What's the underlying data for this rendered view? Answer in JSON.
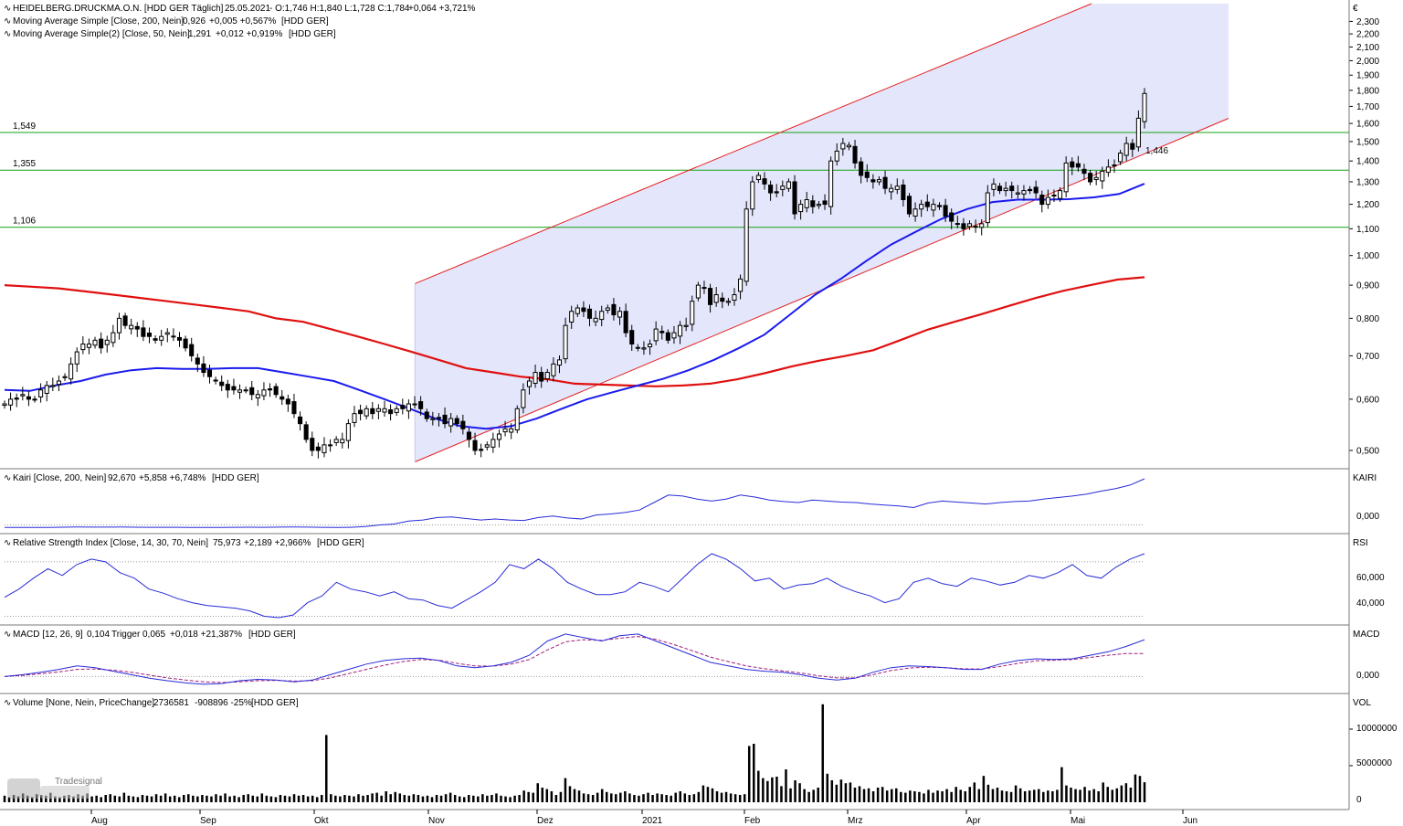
{
  "chart_data": [
    {
      "type": "candlestick",
      "header": {
        "title": "HEIDELBERG.DRUCKMA.O.N. [HDD GER Täglich]",
        "date": "25.05.2021",
        "ohlc": "- O:1,746 H:1,840 L:1,728 C:1,784",
        "change": "+0,064 +3,721%"
      },
      "indicators": [
        {
          "label": "Moving Average Simple [Close, 200, Nein]",
          "value": "0,926",
          "change": "+0,005 +0,567%",
          "suffix": "[HDD GER]",
          "color": "#e01010"
        },
        {
          "label": "Moving Average Simple(2) [Close, 50, Nein]",
          "value": "1,291",
          "change": "+0,012 +0,919%",
          "suffix": "[HDD GER]",
          "color": "#1a1aee"
        }
      ],
      "currency": "€",
      "y_scale": "log",
      "ylim": [
        0.47,
        2.45
      ],
      "y_ticks": [
        0.5,
        0.6,
        0.7,
        0.8,
        0.9,
        1.0,
        1.1,
        1.2,
        1.3,
        1.4,
        1.5,
        1.6,
        1.7,
        1.8,
        1.9,
        2.0,
        2.1,
        2.2,
        2.3
      ],
      "y_tick_labels": [
        "0,500",
        "0,600",
        "0,700",
        "0,800",
        "0,900",
        "1,000",
        "1,100",
        "1,200",
        "1,300",
        "1,400",
        "1,500",
        "1,600",
        "1,700",
        "1,800",
        "1,900",
        "2,000",
        "2,100",
        "2,200",
        "2,300"
      ],
      "x_labels": [
        "Aug",
        "Sep",
        "Okt",
        "Nov",
        "Dez",
        "2021",
        "Feb",
        "Mrz",
        "Apr",
        "Mai",
        "Jun"
      ],
      "horizontal_levels": [
        {
          "label": "1,549",
          "value": 1.549
        },
        {
          "label": "1,355",
          "value": 1.355
        },
        {
          "label": "1,106",
          "value": 1.106
        }
      ],
      "channel_label": "1,446",
      "closes": [
        0.59,
        0.6,
        0.6,
        0.61,
        0.6,
        0.6,
        0.62,
        0.63,
        0.63,
        0.64,
        0.65,
        0.68,
        0.71,
        0.73,
        0.73,
        0.74,
        0.72,
        0.74,
        0.76,
        0.8,
        0.78,
        0.78,
        0.77,
        0.75,
        0.75,
        0.74,
        0.75,
        0.76,
        0.75,
        0.74,
        0.72,
        0.7,
        0.68,
        0.66,
        0.65,
        0.64,
        0.63,
        0.62,
        0.62,
        0.62,
        0.62,
        0.61,
        0.61,
        0.62,
        0.62,
        0.61,
        0.6,
        0.59,
        0.57,
        0.55,
        0.52,
        0.5,
        0.5,
        0.51,
        0.51,
        0.52,
        0.52,
        0.55,
        0.57,
        0.57,
        0.58,
        0.57,
        0.58,
        0.58,
        0.57,
        0.58,
        0.58,
        0.59,
        0.59,
        0.58,
        0.56,
        0.56,
        0.56,
        0.55,
        0.56,
        0.55,
        0.54,
        0.52,
        0.5,
        0.5,
        0.51,
        0.52,
        0.53,
        0.54,
        0.54,
        0.58,
        0.62,
        0.64,
        0.66,
        0.64,
        0.66,
        0.68,
        0.69,
        0.78,
        0.82,
        0.83,
        0.82,
        0.8,
        0.8,
        0.82,
        0.83,
        0.81,
        0.82,
        0.76,
        0.73,
        0.72,
        0.72,
        0.73,
        0.77,
        0.76,
        0.74,
        0.76,
        0.78,
        0.78,
        0.85,
        0.9,
        0.89,
        0.84,
        0.87,
        0.85,
        0.85,
        0.87,
        0.92,
        1.18,
        1.3,
        1.33,
        1.29,
        1.25,
        1.25,
        1.28,
        1.3,
        1.16,
        1.2,
        1.22,
        1.19,
        1.2,
        1.2,
        1.4,
        1.45,
        1.49,
        1.48,
        1.39,
        1.33,
        1.32,
        1.3,
        1.31,
        1.27,
        1.27,
        1.28,
        1.22,
        1.16,
        1.18,
        1.2,
        1.19,
        1.2,
        1.19,
        1.15,
        1.13,
        1.12,
        1.1,
        1.12,
        1.11,
        1.12,
        1.25,
        1.29,
        1.26,
        1.27,
        1.26,
        1.25,
        1.26,
        1.26,
        1.25,
        1.2,
        1.23,
        1.24,
        1.26,
        1.39,
        1.37,
        1.37,
        1.34,
        1.3,
        1.32,
        1.35,
        1.37,
        1.38,
        1.44,
        1.49,
        1.46,
        1.63,
        1.78
      ],
      "sma200": [
        0.9,
        0.895,
        0.89,
        0.88,
        0.87,
        0.86,
        0.85,
        0.84,
        0.83,
        0.82,
        0.8,
        0.79,
        0.77,
        0.75,
        0.73,
        0.71,
        0.69,
        0.67,
        0.66,
        0.65,
        0.644,
        0.634,
        0.632,
        0.63,
        0.628,
        0.63,
        0.634,
        0.644,
        0.658,
        0.674,
        0.688,
        0.7,
        0.714,
        0.74,
        0.768,
        0.79,
        0.812,
        0.836,
        0.86,
        0.882,
        0.9,
        0.918,
        0.926
      ],
      "sma50": [
        0.62,
        0.618,
        0.63,
        0.64,
        0.655,
        0.665,
        0.67,
        0.668,
        0.668,
        0.67,
        0.67,
        0.66,
        0.65,
        0.64,
        0.62,
        0.6,
        0.58,
        0.56,
        0.545,
        0.54,
        0.545,
        0.56,
        0.58,
        0.6,
        0.615,
        0.63,
        0.645,
        0.665,
        0.69,
        0.72,
        0.755,
        0.81,
        0.87,
        0.92,
        0.98,
        1.04,
        1.09,
        1.14,
        1.18,
        1.21,
        1.22,
        1.22,
        1.222,
        1.23,
        1.245,
        1.291
      ]
    },
    {
      "type": "line",
      "header": {
        "label": "Kairi [Close, 200, Nein]",
        "value": "92,670",
        "change": "+5,858 +6,748%",
        "suffix": "[HDD GER]"
      },
      "axis_label": "KAIRI",
      "tick_labels": [
        "0,000"
      ],
      "values": [
        -5,
        -5,
        -4.8,
        -4.9,
        -4.5,
        -4.2,
        -4.4,
        -4.3,
        -4.2,
        -4.5,
        -4.7,
        -4.6,
        -4.7,
        -4.8,
        -4.9,
        -4.8,
        -4.7,
        -4.5,
        -4.6,
        -4.4,
        -4.2,
        -4.4,
        -4.6,
        -4.8,
        -4.6,
        -3,
        0,
        2,
        8,
        10,
        15,
        16,
        13,
        10,
        12,
        10,
        9,
        15,
        18,
        14,
        12,
        20,
        22,
        25,
        30,
        45,
        60,
        58,
        52,
        48,
        52,
        60,
        56,
        50,
        47,
        45,
        50,
        48,
        46,
        45,
        42,
        40,
        38,
        35,
        44,
        48,
        46,
        44,
        42,
        45,
        47,
        48,
        52,
        55,
        58,
        62,
        68,
        73,
        80,
        92.67
      ]
    },
    {
      "type": "line",
      "header": {
        "label": "Relative Strength Index [Close, 14, 30, 70, Nein]",
        "value": "75,973",
        "change": "+2,189 +2,966%",
        "suffix": "[HDD GER]"
      },
      "axis_label": "RSI",
      "tick_labels": [
        "60,000",
        "40,000"
      ],
      "reference_levels": [
        30,
        70
      ],
      "values": [
        44,
        50,
        58,
        65,
        60,
        68,
        72,
        70,
        62,
        58,
        50,
        47,
        43,
        40,
        38,
        37,
        36,
        34,
        30,
        29,
        31,
        40,
        45,
        55,
        50,
        48,
        45,
        48,
        43,
        42,
        38,
        36,
        42,
        48,
        55,
        68,
        65,
        72,
        65,
        55,
        50,
        46,
        46,
        48,
        55,
        52,
        48,
        58,
        68,
        76,
        72,
        65,
        56,
        58,
        50,
        53,
        54,
        58,
        52,
        48,
        45,
        40,
        43,
        55,
        58,
        54,
        52,
        58,
        56,
        53,
        55,
        60,
        58,
        62,
        68,
        60,
        58,
        66,
        72,
        75.973
      ]
    },
    {
      "type": "line",
      "header": {
        "label": "MACD [12, 26, 9]",
        "value": "0,104",
        "trigger_label": "Trigger",
        "trigger_value": "0,065",
        "change": "+0,018 +21,387%",
        "suffix": "[HDD GER]"
      },
      "axis_label": "MACD",
      "tick_labels": [
        "0,000"
      ],
      "series": [
        {
          "name": "MACD",
          "values": [
            0,
            0.005,
            0.012,
            0.02,
            0.03,
            0.025,
            0.015,
            0.005,
            -0.005,
            -0.012,
            -0.018,
            -0.022,
            -0.02,
            -0.012,
            -0.008,
            -0.01,
            -0.015,
            -0.01,
            0.005,
            0.02,
            0.035,
            0.045,
            0.05,
            0.052,
            0.045,
            0.03,
            0.025,
            0.03,
            0.04,
            0.06,
            0.1,
            0.12,
            0.11,
            0.1,
            0.115,
            0.12,
            0.1,
            0.08,
            0.06,
            0.04,
            0.03,
            0.02,
            0.015,
            0.012,
            0.005,
            -0.005,
            -0.01,
            -0.005,
            0.012,
            0.025,
            0.03,
            0.028,
            0.025,
            0.02,
            0.02,
            0.035,
            0.045,
            0.05,
            0.048,
            0.05,
            0.06,
            0.07,
            0.085,
            0.104
          ]
        },
        {
          "name": "Trigger",
          "values": [
            0,
            0.003,
            0.008,
            0.013,
            0.02,
            0.021,
            0.018,
            0.012,
            0.004,
            -0.004,
            -0.01,
            -0.015,
            -0.017,
            -0.015,
            -0.012,
            -0.011,
            -0.013,
            -0.012,
            -0.004,
            0.008,
            0.02,
            0.032,
            0.042,
            0.048,
            0.046,
            0.037,
            0.03,
            0.029,
            0.035,
            0.048,
            0.075,
            0.098,
            0.104,
            0.102,
            0.108,
            0.113,
            0.105,
            0.09,
            0.073,
            0.055,
            0.042,
            0.03,
            0.022,
            0.016,
            0.01,
            0.002,
            -0.004,
            -0.004,
            0.005,
            0.017,
            0.024,
            0.026,
            0.025,
            0.022,
            0.021,
            0.028,
            0.037,
            0.044,
            0.046,
            0.048,
            0.054,
            0.06,
            0.065,
            0.065
          ]
        }
      ]
    },
    {
      "type": "bar",
      "header": {
        "label": "Volume [None, Nein, PriceChange]",
        "value": "2736581",
        "change": "-908896 -25%",
        "suffix": "[HDD GER]"
      },
      "axis_label": "VOL",
      "tick_labels": [
        "10000000",
        "5000000",
        "0"
      ],
      "ylim": [
        0,
        13500000
      ],
      "values": [
        900000,
        700000,
        1000000,
        800000,
        1200000,
        900000,
        700000,
        1100000,
        1000000,
        900000,
        1300000,
        800000,
        700000,
        900000,
        1000000,
        800000,
        1100000,
        900000,
        1200000,
        800000,
        900000,
        700000,
        1000000,
        1100000,
        900000,
        800000,
        1300000,
        900000,
        800000,
        700000,
        1000000,
        900000,
        800000,
        1100000,
        900000,
        1200000,
        800000,
        900000,
        700000,
        1000000,
        1100000,
        900000,
        800000,
        1000000,
        900000,
        800000,
        1100000,
        900000,
        1200000,
        800000,
        900000,
        700000,
        1000000,
        1100000,
        900000,
        800000,
        1200000,
        900000,
        800000,
        700000,
        1000000,
        900000,
        800000,
        1100000,
        900000,
        1000000,
        800000,
        900000,
        700000,
        1000000,
        9200000,
        1100000,
        900000,
        800000,
        1000000,
        900000,
        800000,
        1100000,
        900000,
        1000000,
        1200000,
        1300000,
        900000,
        1500000,
        1100000,
        1400000,
        1200000,
        1000000,
        900000,
        1100000,
        1000000,
        800000,
        900000,
        700000,
        1000000,
        900000,
        1100000,
        1300000,
        1000000,
        800000,
        700000,
        1000000,
        900000,
        800000,
        1100000,
        900000,
        1000000,
        1200000,
        900000,
        800000,
        700000,
        900000,
        1000000,
        1600000,
        1400000,
        1300000,
        2600000,
        2000000,
        1800000,
        1500000,
        1000000,
        1400000,
        3300000,
        2200000,
        1800000,
        1600000,
        1200000,
        1100000,
        1000000,
        1300000,
        1800000,
        1400000,
        1200000,
        1100000,
        1300000,
        1500000,
        1200000,
        1000000,
        900000,
        1100000,
        1300000,
        1000000,
        1200000,
        1100000,
        1000000,
        900000,
        1300000,
        1500000,
        1200000,
        1000000,
        1100000,
        1400000,
        2300000,
        2100000,
        1900000,
        1500000,
        1300000,
        1400000,
        1200000,
        1100000,
        1000000,
        1100000,
        7700000,
        8000000,
        4300000,
        3300000,
        2900000,
        3400000,
        3500000,
        2200000,
        4500000,
        1900000,
        3000000,
        2600000,
        1800000,
        1400000,
        1700000,
        2000000,
        13400000,
        3900000,
        3000000,
        2400000,
        3100000,
        2600000,
        2700000,
        2000000,
        2200000,
        1800000,
        1900000,
        1500000,
        2000000,
        2100000,
        1600000,
        1800000,
        1900000,
        1400000,
        1300000,
        1600000,
        1500000,
        1400000,
        1200000,
        1700000,
        1300000,
        1600000,
        1500000,
        1800000,
        1400000,
        2100000,
        1700000,
        1500000,
        2100000,
        2700000,
        1800000,
        3600000,
        2400000,
        1800000,
        2000000,
        1600000,
        1500000,
        1400000,
        2300000,
        1900000,
        1500000,
        1600000,
        1700000,
        1800000,
        1400000,
        1600000,
        1500000,
        1700000,
        4800000,
        2300000,
        2000000,
        1800000,
        1700000,
        2100000,
        1600000,
        1800000,
        1500000,
        2700000,
        2100000,
        1700000,
        1900000,
        2300000,
        2600000,
        2000000,
        3800000,
        3600000,
        2736581
      ]
    }
  ],
  "watermark": "Tradesignal",
  "colors": {
    "sma200": "#e01010",
    "sma50": "#1a1aee",
    "indicator_line": "#2a2ad8",
    "trigger": "#a0207a",
    "level_line": "#13a013",
    "level_text": "#1a8a1a",
    "channel_fill": "#e4e6fb",
    "channel_line": "#e52020",
    "grid": "#b8b8b8",
    "candle": "#000000",
    "value_green": "#1a9a1a",
    "value_red": "#e01010",
    "value_blue": "#1a1ad8"
  }
}
